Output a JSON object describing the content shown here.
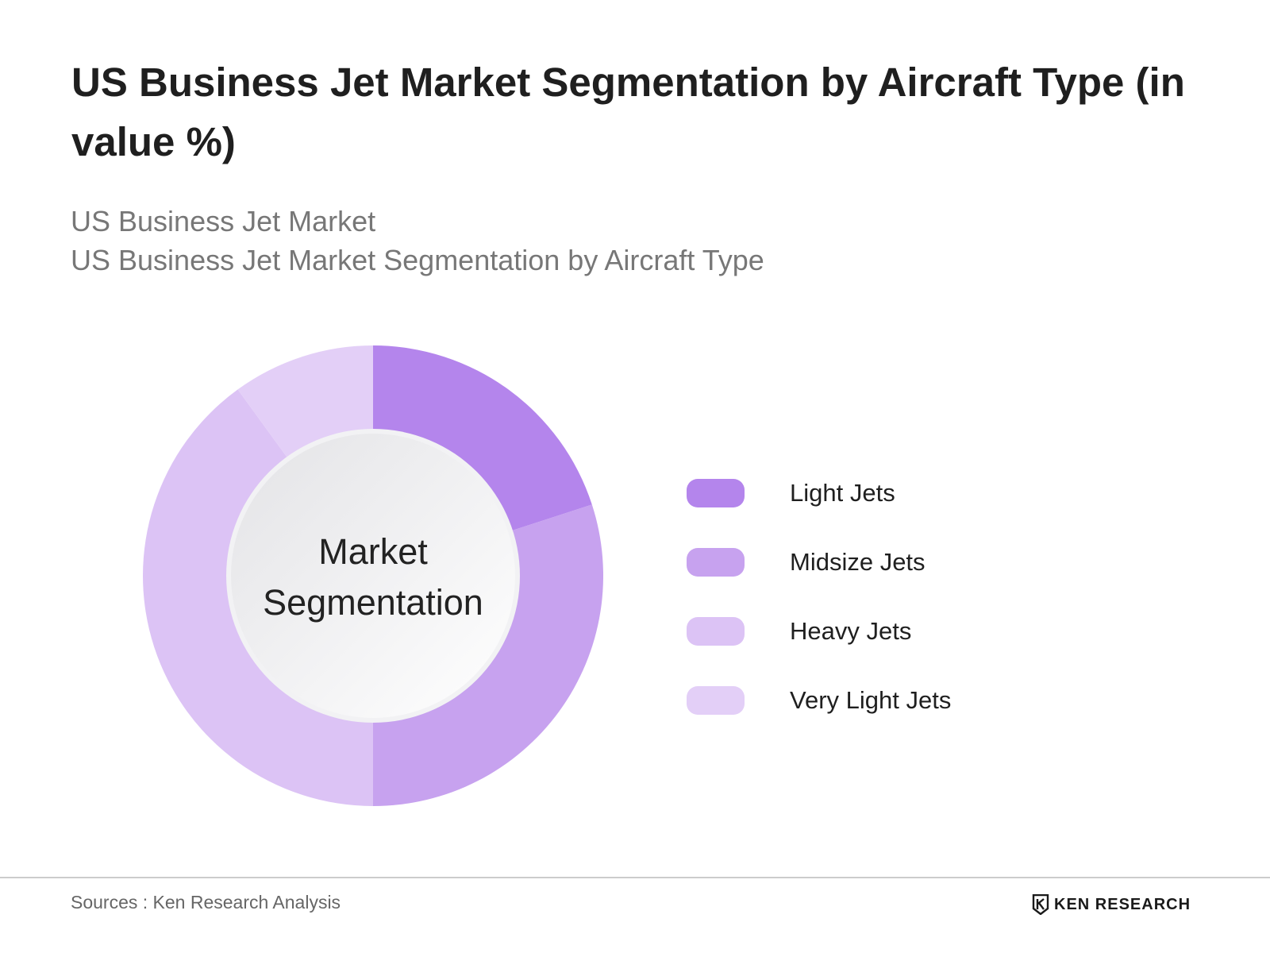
{
  "title": "US Business Jet Market Segmentation by Aircraft Type (in value %)",
  "subtitle_lines": [
    "US Business Jet Market",
    "US Business Jet Market Segmentation by Aircraft Type"
  ],
  "center_label_lines": [
    "Market",
    "Segmentation"
  ],
  "chart_data": {
    "type": "pie",
    "style": "donut",
    "categories": [
      "Light Jets",
      "Midsize Jets",
      "Heavy Jets",
      "Very Light Jets"
    ],
    "values": [
      20,
      30,
      40,
      10
    ],
    "unit": "%",
    "colors": [
      "#b485ec",
      "#c7a2ef",
      "#dcc3f5",
      "#e3cff7"
    ],
    "legend_position": "right"
  },
  "footer": {
    "source": "Sources : Ken Research Analysis",
    "brand": "KEN RESEARCH"
  }
}
